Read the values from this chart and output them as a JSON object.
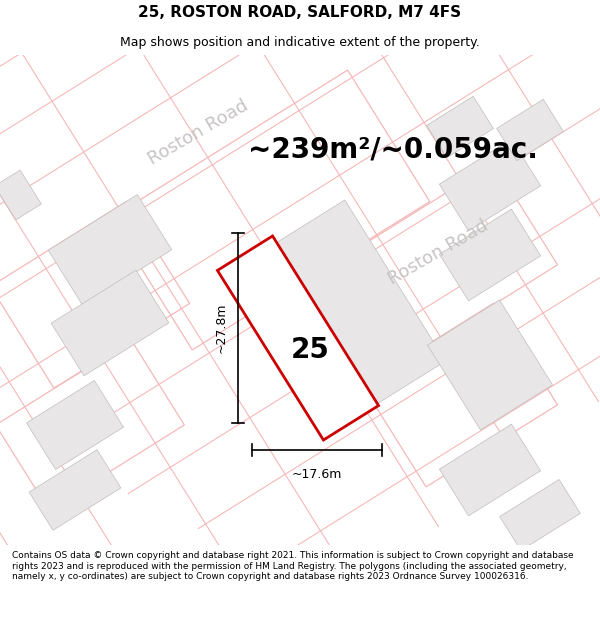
{
  "title": "25, ROSTON ROAD, SALFORD, M7 4FS",
  "subtitle": "Map shows position and indicative extent of the property.",
  "area_text": "~239m²/~0.059ac.",
  "plot_number": "25",
  "dim_height": "~27.8m",
  "dim_width": "~17.6m",
  "road_label_1": "Roston Road",
  "road_label_2": "Roston Road",
  "footer": "Contains OS data © Crown copyright and database right 2021. This information is subject to Crown copyright and database rights 2023 and is reproduced with the permission of HM Land Registry. The polygons (including the associated geometry, namely x, y co-ordinates) are subject to Crown copyright and database rights 2023 Ordnance Survey 100026316.",
  "bg_color": "#ffffff",
  "map_bg": "#f8f6f6",
  "building_color": "#e8e6e6",
  "building_edge": "#c0bcbc",
  "road_line_color": "#f5b8b8",
  "plot_outline_color": "#f5b8b8",
  "plot_color": "#f8f6f6",
  "plot_edge": "#cc0000",
  "title_fontsize": 11,
  "subtitle_fontsize": 9,
  "area_fontsize": 20,
  "plot_num_fontsize": 20,
  "dim_fontsize": 9,
  "road_label_fontsize": 13,
  "footer_fontsize": 6.5
}
